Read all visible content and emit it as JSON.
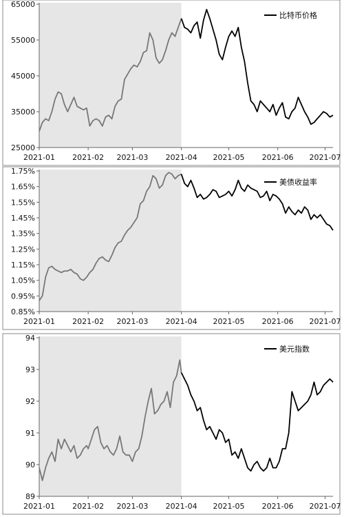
{
  "chart_data": [
    {
      "type": "line",
      "name": "bitcoin",
      "legend": "比特币价格",
      "ylim": [
        25000,
        65000
      ],
      "yticks": [
        "25000",
        "35000",
        "45000",
        "55000",
        "65000"
      ],
      "ytick_values": [
        25000,
        35000,
        45000,
        55000,
        65000
      ],
      "xticks": [
        "2021-01",
        "2021-02",
        "2021-03",
        "2021-04",
        "2021-05",
        "2021-06",
        "2021-07"
      ],
      "xtick_values": [
        0,
        31,
        59,
        90,
        120,
        151,
        181
      ],
      "x_range": [
        0,
        186
      ],
      "shade_until": 90,
      "series_colors": {
        "early": "#777777",
        "late": "#000000"
      },
      "shade_color": "#e6e6e6",
      "values": [
        [
          0,
          29500
        ],
        [
          2,
          32000
        ],
        [
          4,
          33000
        ],
        [
          6,
          32500
        ],
        [
          8,
          35000
        ],
        [
          10,
          38500
        ],
        [
          12,
          40500
        ],
        [
          14,
          40000
        ],
        [
          16,
          37000
        ],
        [
          18,
          35000
        ],
        [
          20,
          37000
        ],
        [
          22,
          39000
        ],
        [
          24,
          36500
        ],
        [
          26,
          36000
        ],
        [
          28,
          35500
        ],
        [
          30,
          36000
        ],
        [
          31,
          33500
        ],
        [
          32,
          31000
        ],
        [
          34,
          32500
        ],
        [
          36,
          33000
        ],
        [
          38,
          32500
        ],
        [
          40,
          31000
        ],
        [
          42,
          33500
        ],
        [
          44,
          34000
        ],
        [
          46,
          33000
        ],
        [
          48,
          36500
        ],
        [
          50,
          38000
        ],
        [
          52,
          38500
        ],
        [
          54,
          44000
        ],
        [
          56,
          45500
        ],
        [
          58,
          47000
        ],
        [
          60,
          48000
        ],
        [
          62,
          47500
        ],
        [
          64,
          49000
        ],
        [
          66,
          51500
        ],
        [
          68,
          52000
        ],
        [
          70,
          57000
        ],
        [
          72,
          55000
        ],
        [
          74,
          50000
        ],
        [
          76,
          48500
        ],
        [
          78,
          49500
        ],
        [
          80,
          52000
        ],
        [
          82,
          55000
        ],
        [
          84,
          57000
        ],
        [
          86,
          56000
        ],
        [
          88,
          58500
        ],
        [
          90,
          61000
        ],
        [
          92,
          58500
        ],
        [
          94,
          58000
        ],
        [
          96,
          57000
        ],
        [
          98,
          59000
        ],
        [
          100,
          60000
        ],
        [
          102,
          55500
        ],
        [
          104,
          60500
        ],
        [
          106,
          63500
        ],
        [
          108,
          61000
        ],
        [
          110,
          58000
        ],
        [
          112,
          55000
        ],
        [
          114,
          51000
        ],
        [
          116,
          49500
        ],
        [
          118,
          53000
        ],
        [
          120,
          56000
        ],
        [
          122,
          57500
        ],
        [
          124,
          56000
        ],
        [
          126,
          58500
        ],
        [
          128,
          53000
        ],
        [
          130,
          49000
        ],
        [
          132,
          43000
        ],
        [
          134,
          38000
        ],
        [
          136,
          37000
        ],
        [
          138,
          35000
        ],
        [
          140,
          38000
        ],
        [
          142,
          37000
        ],
        [
          144,
          36000
        ],
        [
          146,
          35000
        ],
        [
          148,
          37000
        ],
        [
          150,
          34000
        ],
        [
          152,
          36000
        ],
        [
          154,
          37500
        ],
        [
          156,
          33500
        ],
        [
          158,
          33000
        ],
        [
          160,
          35000
        ],
        [
          162,
          36000
        ],
        [
          164,
          39000
        ],
        [
          166,
          37000
        ],
        [
          168,
          35000
        ],
        [
          170,
          33500
        ],
        [
          172,
          31500
        ],
        [
          174,
          32000
        ],
        [
          176,
          33000
        ],
        [
          178,
          34000
        ],
        [
          180,
          35000
        ],
        [
          182,
          34500
        ],
        [
          184,
          33500
        ],
        [
          186,
          34000
        ]
      ]
    },
    {
      "type": "line",
      "name": "treasury",
      "legend": "美债收益率",
      "ylim": [
        0.85,
        1.75
      ],
      "yticks": [
        "0.85%",
        "0.95%",
        "1.05%",
        "1.15%",
        "1.25%",
        "1.35%",
        "1.45%",
        "1.55%",
        "1.65%",
        "1.75%"
      ],
      "ytick_values": [
        0.85,
        0.95,
        1.05,
        1.15,
        1.25,
        1.35,
        1.45,
        1.55,
        1.65,
        1.75
      ],
      "xticks": [
        "2021-01",
        "2021-02",
        "2021-03",
        "2021-04",
        "2021-05",
        "2021-06",
        "2021-07"
      ],
      "xtick_values": [
        0,
        31,
        59,
        90,
        120,
        151,
        181
      ],
      "x_range": [
        0,
        186
      ],
      "shade_until": 90,
      "series_colors": {
        "early": "#777777",
        "late": "#000000"
      },
      "shade_color": "#e6e6e6",
      "values": [
        [
          0,
          0.92
        ],
        [
          2,
          0.95
        ],
        [
          4,
          1.07
        ],
        [
          6,
          1.13
        ],
        [
          8,
          1.14
        ],
        [
          10,
          1.12
        ],
        [
          12,
          1.11
        ],
        [
          14,
          1.1
        ],
        [
          16,
          1.11
        ],
        [
          18,
          1.11
        ],
        [
          20,
          1.12
        ],
        [
          22,
          1.1
        ],
        [
          24,
          1.09
        ],
        [
          26,
          1.06
        ],
        [
          28,
          1.05
        ],
        [
          30,
          1.07
        ],
        [
          32,
          1.1
        ],
        [
          34,
          1.12
        ],
        [
          36,
          1.16
        ],
        [
          38,
          1.19
        ],
        [
          40,
          1.2
        ],
        [
          42,
          1.18
        ],
        [
          44,
          1.17
        ],
        [
          46,
          1.21
        ],
        [
          48,
          1.26
        ],
        [
          50,
          1.29
        ],
        [
          52,
          1.3
        ],
        [
          54,
          1.34
        ],
        [
          56,
          1.37
        ],
        [
          58,
          1.39
        ],
        [
          60,
          1.42
        ],
        [
          62,
          1.45
        ],
        [
          64,
          1.54
        ],
        [
          66,
          1.56
        ],
        [
          68,
          1.62
        ],
        [
          70,
          1.65
        ],
        [
          72,
          1.72
        ],
        [
          74,
          1.7
        ],
        [
          76,
          1.64
        ],
        [
          78,
          1.66
        ],
        [
          80,
          1.72
        ],
        [
          82,
          1.74
        ],
        [
          84,
          1.73
        ],
        [
          86,
          1.7
        ],
        [
          88,
          1.72
        ],
        [
          90,
          1.73
        ],
        [
          92,
          1.67
        ],
        [
          94,
          1.65
        ],
        [
          96,
          1.69
        ],
        [
          98,
          1.64
        ],
        [
          100,
          1.58
        ],
        [
          102,
          1.6
        ],
        [
          104,
          1.57
        ],
        [
          106,
          1.58
        ],
        [
          108,
          1.6
        ],
        [
          110,
          1.63
        ],
        [
          112,
          1.62
        ],
        [
          114,
          1.58
        ],
        [
          116,
          1.59
        ],
        [
          118,
          1.6
        ],
        [
          120,
          1.62
        ],
        [
          122,
          1.59
        ],
        [
          124,
          1.63
        ],
        [
          126,
          1.69
        ],
        [
          128,
          1.64
        ],
        [
          130,
          1.62
        ],
        [
          132,
          1.66
        ],
        [
          134,
          1.64
        ],
        [
          136,
          1.63
        ],
        [
          138,
          1.62
        ],
        [
          140,
          1.58
        ],
        [
          142,
          1.59
        ],
        [
          144,
          1.62
        ],
        [
          146,
          1.56
        ],
        [
          148,
          1.6
        ],
        [
          150,
          1.59
        ],
        [
          152,
          1.57
        ],
        [
          154,
          1.54
        ],
        [
          156,
          1.48
        ],
        [
          158,
          1.52
        ],
        [
          160,
          1.49
        ],
        [
          162,
          1.47
        ],
        [
          164,
          1.5
        ],
        [
          166,
          1.48
        ],
        [
          168,
          1.52
        ],
        [
          170,
          1.5
        ],
        [
          172,
          1.44
        ],
        [
          174,
          1.47
        ],
        [
          176,
          1.45
        ],
        [
          178,
          1.47
        ],
        [
          180,
          1.44
        ],
        [
          182,
          1.41
        ],
        [
          184,
          1.4
        ],
        [
          186,
          1.37
        ]
      ]
    },
    {
      "type": "line",
      "name": "dollar",
      "legend": "美元指数",
      "ylim": [
        89,
        94
      ],
      "yticks": [
        "89",
        "90",
        "91",
        "92",
        "93",
        "94"
      ],
      "ytick_values": [
        89,
        90,
        91,
        92,
        93,
        94
      ],
      "xticks": [
        "2021-01",
        "2021-02",
        "2021-03",
        "2021-04",
        "2021-05",
        "2021-06",
        "2021-07"
      ],
      "xtick_values": [
        0,
        31,
        59,
        90,
        120,
        151,
        181
      ],
      "x_range": [
        0,
        186
      ],
      "shade_until": 90,
      "series_colors": {
        "early": "#777777",
        "late": "#000000"
      },
      "shade_color": "#e6e6e6",
      "values": [
        [
          0,
          89.9
        ],
        [
          2,
          89.5
        ],
        [
          4,
          89.9
        ],
        [
          6,
          90.2
        ],
        [
          8,
          90.4
        ],
        [
          10,
          90.1
        ],
        [
          12,
          90.8
        ],
        [
          14,
          90.5
        ],
        [
          16,
          90.8
        ],
        [
          18,
          90.6
        ],
        [
          20,
          90.4
        ],
        [
          22,
          90.6
        ],
        [
          24,
          90.2
        ],
        [
          26,
          90.3
        ],
        [
          28,
          90.5
        ],
        [
          30,
          90.6
        ],
        [
          31,
          90.5
        ],
        [
          33,
          90.8
        ],
        [
          35,
          91.1
        ],
        [
          37,
          91.2
        ],
        [
          39,
          90.7
        ],
        [
          41,
          90.5
        ],
        [
          43,
          90.6
        ],
        [
          45,
          90.4
        ],
        [
          47,
          90.3
        ],
        [
          49,
          90.5
        ],
        [
          51,
          90.9
        ],
        [
          53,
          90.4
        ],
        [
          55,
          90.3
        ],
        [
          57,
          90.3
        ],
        [
          59,
          90.1
        ],
        [
          61,
          90.4
        ],
        [
          63,
          90.5
        ],
        [
          65,
          90.9
        ],
        [
          67,
          91.5
        ],
        [
          69,
          92.0
        ],
        [
          71,
          92.4
        ],
        [
          73,
          91.6
        ],
        [
          75,
          91.7
        ],
        [
          77,
          91.9
        ],
        [
          79,
          92.0
        ],
        [
          81,
          92.3
        ],
        [
          83,
          91.8
        ],
        [
          85,
          92.6
        ],
        [
          87,
          92.8
        ],
        [
          89,
          93.3
        ],
        [
          90,
          92.9
        ],
        [
          92,
          92.7
        ],
        [
          94,
          92.5
        ],
        [
          96,
          92.2
        ],
        [
          98,
          92.0
        ],
        [
          100,
          91.7
        ],
        [
          102,
          91.8
        ],
        [
          104,
          91.4
        ],
        [
          106,
          91.1
        ],
        [
          108,
          91.2
        ],
        [
          110,
          91.0
        ],
        [
          112,
          90.8
        ],
        [
          114,
          91.1
        ],
        [
          116,
          91.0
        ],
        [
          118,
          90.7
        ],
        [
          120,
          90.8
        ],
        [
          122,
          90.3
        ],
        [
          124,
          90.4
        ],
        [
          126,
          90.2
        ],
        [
          128,
          90.5
        ],
        [
          130,
          90.2
        ],
        [
          132,
          89.9
        ],
        [
          134,
          89.8
        ],
        [
          136,
          90.0
        ],
        [
          138,
          90.1
        ],
        [
          140,
          89.9
        ],
        [
          142,
          89.8
        ],
        [
          144,
          89.9
        ],
        [
          146,
          90.2
        ],
        [
          148,
          89.9
        ],
        [
          150,
          89.9
        ],
        [
          152,
          90.1
        ],
        [
          154,
          90.5
        ],
        [
          156,
          90.5
        ],
        [
          158,
          91.0
        ],
        [
          160,
          92.3
        ],
        [
          162,
          92.0
        ],
        [
          164,
          91.7
        ],
        [
          166,
          91.8
        ],
        [
          168,
          91.9
        ],
        [
          170,
          92.0
        ],
        [
          172,
          92.2
        ],
        [
          174,
          92.6
        ],
        [
          176,
          92.2
        ],
        [
          178,
          92.3
        ],
        [
          180,
          92.5
        ],
        [
          182,
          92.6
        ],
        [
          184,
          92.7
        ],
        [
          186,
          92.6
        ]
      ]
    }
  ]
}
